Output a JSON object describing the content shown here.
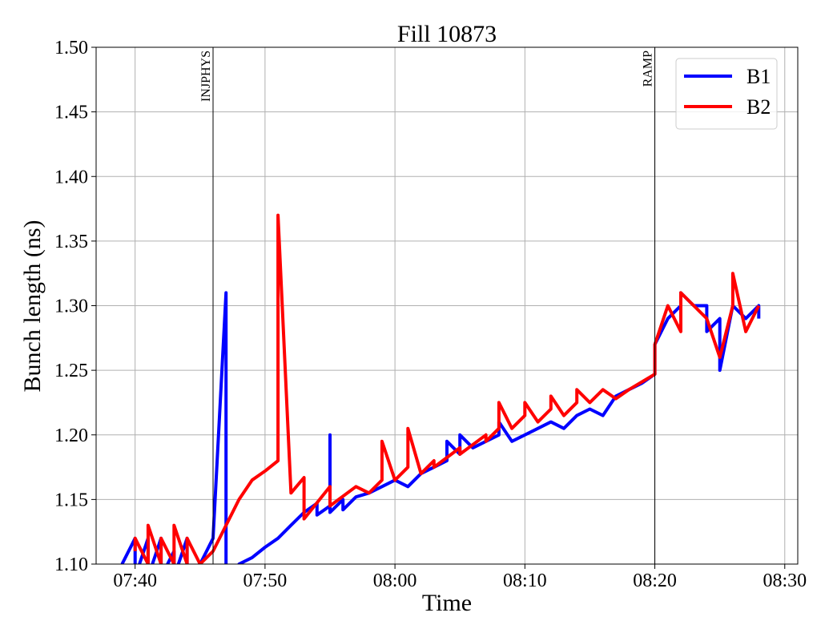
{
  "chart_data": {
    "type": "line",
    "title": "Fill 10873",
    "xlabel": "Time",
    "ylabel": "Bunch length (ns)",
    "xlim": [
      "07:37",
      "08:31"
    ],
    "xticks": [
      "07:40",
      "07:50",
      "08:00",
      "08:10",
      "08:20",
      "08:30"
    ],
    "ylim": [
      1.1,
      1.5
    ],
    "yticks": [
      {
        "value": 1.1,
        "label": "1.10"
      },
      {
        "value": 1.15,
        "label": "1.15"
      },
      {
        "value": 1.2,
        "label": "1.20"
      },
      {
        "value": 1.25,
        "label": "1.25"
      },
      {
        "value": 1.3,
        "label": "1.30"
      },
      {
        "value": 1.35,
        "label": "1.35"
      },
      {
        "value": 1.4,
        "label": "1.40"
      },
      {
        "value": 1.45,
        "label": "1.45"
      },
      {
        "value": 1.5,
        "label": "1.50"
      }
    ],
    "grid": true,
    "legend": "upper right",
    "annotations": [
      {
        "x": "07:46",
        "label": "INJPHYS"
      },
      {
        "x": "08:20",
        "label": "RAMP"
      }
    ],
    "series": [
      {
        "name": "B1",
        "color": "#0000ff",
        "x": [
          "07:39",
          "07:40",
          "07:40",
          "07:41",
          "07:41",
          "07:42",
          "07:42",
          "07:43",
          "07:43",
          "07:44",
          "07:44",
          "07:45",
          "07:46",
          "07:47",
          "07:47",
          "07:48",
          "07:49",
          "07:50",
          "07:51",
          "07:52",
          "07:53",
          "07:54",
          "07:54",
          "07:55",
          "07:55",
          "07:55",
          "07:56",
          "07:56",
          "07:57",
          "07:58",
          "07:59",
          "08:00",
          "08:01",
          "08:02",
          "08:03",
          "08:04",
          "08:04",
          "08:05",
          "08:05",
          "08:06",
          "08:07",
          "08:08",
          "08:08",
          "08:09",
          "08:10",
          "08:11",
          "08:12",
          "08:13",
          "08:14",
          "08:15",
          "08:16",
          "08:17",
          "08:18",
          "08:19",
          "08:20",
          "08:20",
          "08:21",
          "08:22",
          "08:22",
          "08:23",
          "08:24",
          "08:24",
          "08:25",
          "08:25",
          "08:26",
          "08:27",
          "08:28",
          "08:28"
        ],
        "values": [
          1.1,
          1.12,
          1.09,
          1.12,
          1.09,
          1.12,
          1.09,
          1.11,
          1.09,
          1.12,
          1.09,
          1.1,
          1.12,
          1.31,
          1.08,
          1.1,
          1.105,
          1.113,
          1.12,
          1.13,
          1.14,
          1.147,
          1.138,
          1.145,
          1.2,
          1.14,
          1.15,
          1.142,
          1.152,
          1.155,
          1.16,
          1.165,
          1.16,
          1.17,
          1.175,
          1.18,
          1.195,
          1.185,
          1.2,
          1.19,
          1.195,
          1.2,
          1.21,
          1.195,
          1.2,
          1.205,
          1.21,
          1.205,
          1.215,
          1.22,
          1.215,
          1.23,
          1.235,
          1.24,
          1.247,
          1.27,
          1.29,
          1.3,
          1.31,
          1.3,
          1.3,
          1.28,
          1.29,
          1.25,
          1.3,
          1.29,
          1.3,
          1.29
        ]
      },
      {
        "name": "B2",
        "color": "#ff0000",
        "x": [
          "07:40",
          "07:40",
          "07:41",
          "07:41",
          "07:42",
          "07:42",
          "07:43",
          "07:43",
          "07:44",
          "07:44",
          "07:45",
          "07:46",
          "07:48",
          "07:49",
          "07:50",
          "07:51",
          "07:51",
          "07:52",
          "07:53",
          "07:53",
          "07:55",
          "07:55",
          "07:57",
          "07:58",
          "07:59",
          "07:59",
          "08:00",
          "08:01",
          "08:01",
          "08:02",
          "08:03",
          "08:03",
          "08:05",
          "08:05",
          "08:07",
          "08:07",
          "08:08",
          "08:08",
          "08:09",
          "08:10",
          "08:10",
          "08:11",
          "08:12",
          "08:12",
          "08:13",
          "08:14",
          "08:14",
          "08:15",
          "08:16",
          "08:17",
          "08:18",
          "08:20",
          "08:20",
          "08:21",
          "08:22",
          "08:22",
          "08:23",
          "08:24",
          "08:25",
          "08:26",
          "08:26",
          "08:27",
          "08:28"
        ],
        "values": [
          1.11,
          1.12,
          1.1,
          1.13,
          1.1,
          1.12,
          1.1,
          1.13,
          1.1,
          1.12,
          1.1,
          1.11,
          1.15,
          1.165,
          1.172,
          1.18,
          1.37,
          1.155,
          1.167,
          1.135,
          1.16,
          1.145,
          1.16,
          1.155,
          1.165,
          1.195,
          1.165,
          1.175,
          1.205,
          1.17,
          1.18,
          1.175,
          1.19,
          1.185,
          1.2,
          1.195,
          1.205,
          1.225,
          1.205,
          1.215,
          1.225,
          1.21,
          1.22,
          1.23,
          1.215,
          1.225,
          1.235,
          1.225,
          1.235,
          1.228,
          1.235,
          1.247,
          1.27,
          1.3,
          1.28,
          1.31,
          1.3,
          1.29,
          1.26,
          1.3,
          1.325,
          1.28,
          1.3
        ]
      }
    ]
  }
}
